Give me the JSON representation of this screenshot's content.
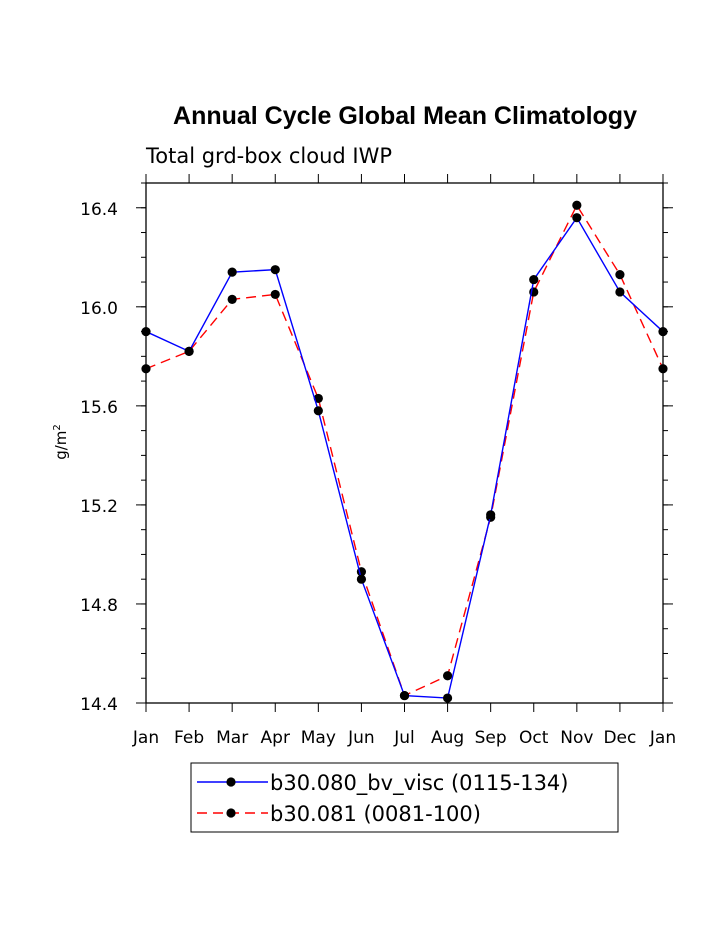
{
  "chart_data": {
    "type": "line",
    "title": "Annual Cycle Global Mean Climatology",
    "subtitle": "Total grd-box cloud IWP",
    "ylabel_base": "g/m",
    "ylabel_sup": "2",
    "xlabel": "",
    "categories": [
      "Jan",
      "Feb",
      "Mar",
      "Apr",
      "May",
      "Jun",
      "Jul",
      "Aug",
      "Sep",
      "Oct",
      "Nov",
      "Dec",
      "Jan"
    ],
    "ylim": [
      14.4,
      16.5
    ],
    "yticks": [
      14.4,
      14.8,
      15.2,
      15.6,
      16.0,
      16.4
    ],
    "ytick_labels": [
      "14.4",
      "14.8",
      "15.2",
      "15.6",
      "16.0",
      "16.4"
    ],
    "grid": false,
    "legend_position": "bottom",
    "series": [
      {
        "name": "b30.080_bv_visc (0115-134)",
        "color": "#0000ff",
        "dash": "solid",
        "values": [
          15.9,
          15.82,
          16.14,
          16.15,
          15.58,
          14.9,
          14.43,
          14.42,
          15.16,
          16.11,
          16.36,
          16.06,
          15.9
        ]
      },
      {
        "name": "b30.081 (0081-100)",
        "color": "#ff0000",
        "dash": "dashed",
        "values": [
          15.75,
          15.82,
          16.03,
          16.05,
          15.63,
          14.93,
          14.43,
          14.51,
          15.15,
          16.06,
          16.41,
          16.13,
          15.75
        ]
      }
    ]
  }
}
